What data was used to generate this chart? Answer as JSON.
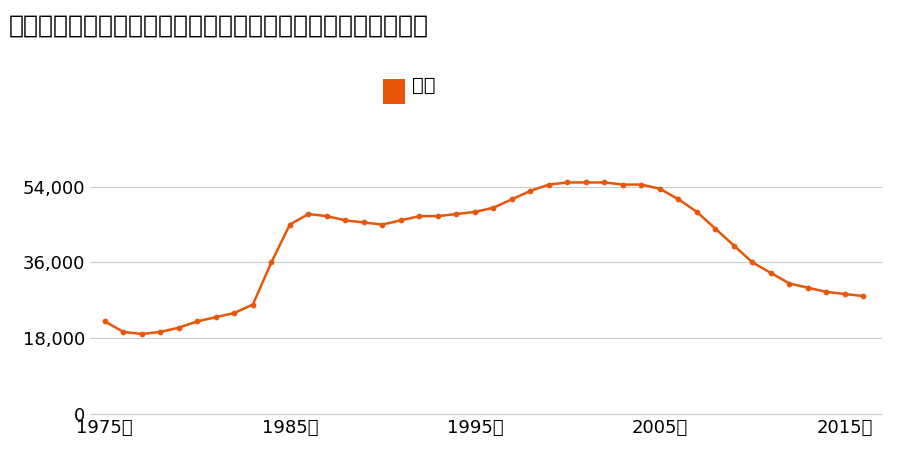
{
  "title": "青森県青森市大字筒井字八ツ橋２６５番１ほか１筆の地価推移",
  "legend_label": "価格",
  "line_color": "#e8560a",
  "marker_color": "#e8560a",
  "background_color": "#ffffff",
  "years": [
    1975,
    1976,
    1977,
    1978,
    1979,
    1980,
    1981,
    1982,
    1983,
    1984,
    1985,
    1986,
    1987,
    1988,
    1989,
    1990,
    1991,
    1992,
    1993,
    1994,
    1995,
    1996,
    1997,
    1998,
    1999,
    2000,
    2001,
    2002,
    2003,
    2004,
    2005,
    2006,
    2007,
    2008,
    2009,
    2010,
    2011,
    2012,
    2013,
    2014,
    2015,
    2016
  ],
  "values": [
    22000,
    19500,
    19000,
    19500,
    20500,
    22000,
    23000,
    24000,
    26000,
    36000,
    45000,
    47500,
    47000,
    46000,
    45500,
    45000,
    46000,
    47000,
    47000,
    47500,
    48000,
    49000,
    51000,
    53000,
    54500,
    55000,
    55000,
    55000,
    54500,
    54500,
    53500,
    51000,
    48000,
    44000,
    40000,
    36000,
    33500,
    31000,
    30000,
    29000,
    28500,
    28000
  ],
  "ylim": [
    0,
    62000
  ],
  "yticks": [
    0,
    18000,
    36000,
    54000
  ],
  "xlim_min": 1974.2,
  "xlim_max": 2017,
  "xticks": [
    1975,
    1985,
    1995,
    2005,
    2015
  ],
  "grid_color": "#cccccc",
  "title_fontsize": 18,
  "tick_fontsize": 13,
  "legend_fontsize": 14
}
